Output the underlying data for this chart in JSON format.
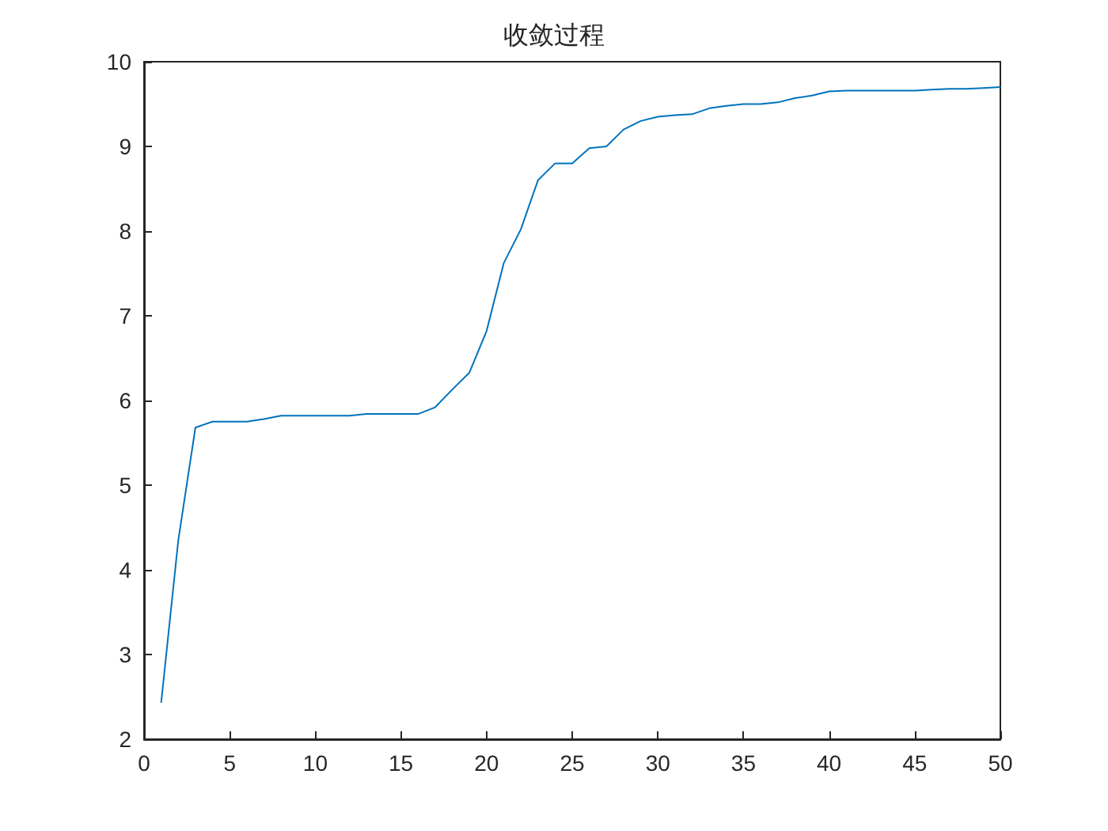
{
  "chart_data": {
    "type": "line",
    "title": "收敛过程",
    "x": [
      1,
      2,
      3,
      4,
      5,
      6,
      7,
      8,
      9,
      10,
      11,
      12,
      13,
      14,
      15,
      16,
      17,
      18,
      19,
      20,
      21,
      22,
      23,
      24,
      25,
      26,
      27,
      28,
      29,
      30,
      31,
      32,
      33,
      34,
      35,
      36,
      37,
      38,
      39,
      40,
      41,
      42,
      43,
      44,
      45,
      46,
      47,
      48,
      49,
      50
    ],
    "series": [
      {
        "color": "#0072bd",
        "values": [
          2.43,
          4.35,
          5.68,
          5.75,
          5.75,
          5.75,
          5.78,
          5.82,
          5.82,
          5.82,
          5.82,
          5.82,
          5.84,
          5.84,
          5.84,
          5.84,
          5.92,
          6.13,
          6.33,
          6.82,
          7.62,
          8.02,
          8.6,
          8.8,
          8.8,
          8.98,
          9.0,
          9.2,
          9.3,
          9.35,
          9.37,
          9.38,
          9.45,
          9.48,
          9.5,
          9.5,
          9.52,
          9.57,
          9.6,
          9.65,
          9.66,
          9.66,
          9.66,
          9.66,
          9.66,
          9.67,
          9.68,
          9.68,
          9.69,
          9.7
        ]
      }
    ],
    "xlim": [
      0,
      50
    ],
    "xticks": [
      0,
      5,
      10,
      15,
      20,
      25,
      30,
      35,
      40,
      45,
      50
    ],
    "ylim": [
      2,
      10
    ],
    "yticks": [
      2,
      3,
      4,
      5,
      6,
      7,
      8,
      9,
      10
    ],
    "grid": false,
    "marker": "none",
    "line_style": "solid"
  }
}
